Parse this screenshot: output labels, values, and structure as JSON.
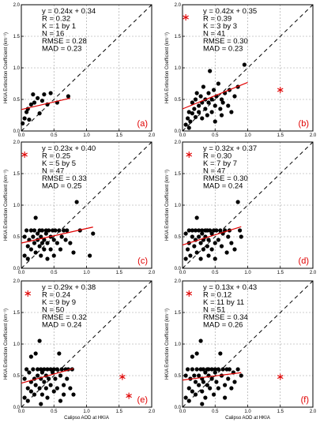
{
  "chart_data": [
    {
      "panel": "(a)",
      "type": "scatter",
      "xlabel": "",
      "ylabel": "HKIA Extinction Coefficient (km⁻¹)",
      "xlim": [
        0,
        2
      ],
      "ylim": [
        0,
        2
      ],
      "xticks": [
        "0.0",
        "0.5",
        "1.0",
        "1.5",
        "2.0"
      ],
      "yticks": [
        "0.0",
        "0.5",
        "1.0",
        "1.5",
        "2.0"
      ],
      "grid": true,
      "stats": [
        "y = 0.24x + 0.34",
        "R = 0.32",
        "K = 1 by 1",
        "N = 16",
        "RMSE = 0.28",
        "MAD = 0.23"
      ],
      "fit": {
        "slope": 0.24,
        "intercept": 0.34,
        "x_range": [
          0,
          0.75
        ]
      },
      "points": [
        [
          0.02,
          0.12
        ],
        [
          0.05,
          0.2
        ],
        [
          0.08,
          0.3
        ],
        [
          0.12,
          0.18
        ],
        [
          0.15,
          0.42
        ],
        [
          0.18,
          0.58
        ],
        [
          0.2,
          0.45
        ],
        [
          0.25,
          0.52
        ],
        [
          0.28,
          0.28
        ],
        [
          0.32,
          0.48
        ],
        [
          0.35,
          0.58
        ],
        [
          0.4,
          0.42
        ],
        [
          0.45,
          0.6
        ],
        [
          0.55,
          0.45
        ],
        [
          0.72,
          0.55
        ],
        [
          0.1,
          0.35
        ]
      ],
      "outliers": []
    },
    {
      "panel": "(b)",
      "type": "scatter",
      "xlabel": "",
      "ylabel": "HKIA Extinction Coefficient (km⁻¹)",
      "xlim": [
        0,
        2
      ],
      "ylim": [
        0,
        2
      ],
      "xticks": [
        "0.0",
        "0.5",
        "1.0",
        "1.5",
        "2.0"
      ],
      "yticks": [
        "0.0",
        "0.5",
        "1.0",
        "1.5",
        "2.0"
      ],
      "grid": true,
      "stats": [
        "y = 0.42x + 0.35",
        "R = 0.39",
        "K = 3 by 3",
        "N = 41",
        "RMSE = 0.30",
        "MAD = 0.23"
      ],
      "fit": {
        "slope": 0.42,
        "intercept": 0.35,
        "x_range": [
          0,
          1.0
        ]
      },
      "points": [
        [
          0.05,
          0.1
        ],
        [
          0.08,
          0.2
        ],
        [
          0.1,
          0.3
        ],
        [
          0.12,
          0.15
        ],
        [
          0.15,
          0.28
        ],
        [
          0.15,
          0.45
        ],
        [
          0.18,
          0.35
        ],
        [
          0.2,
          0.22
        ],
        [
          0.2,
          0.5
        ],
        [
          0.22,
          0.6
        ],
        [
          0.25,
          0.4
        ],
        [
          0.25,
          0.3
        ],
        [
          0.28,
          0.55
        ],
        [
          0.3,
          0.2
        ],
        [
          0.3,
          0.45
        ],
        [
          0.32,
          0.7
        ],
        [
          0.35,
          0.5
        ],
        [
          0.35,
          0.35
        ],
        [
          0.38,
          0.25
        ],
        [
          0.4,
          0.6
        ],
        [
          0.4,
          0.45
        ],
        [
          0.42,
          0.95
        ],
        [
          0.45,
          0.3
        ],
        [
          0.45,
          0.5
        ],
        [
          0.48,
          0.65
        ],
        [
          0.5,
          0.4
        ],
        [
          0.5,
          0.15
        ],
        [
          0.52,
          0.55
        ],
        [
          0.55,
          0.75
        ],
        [
          0.58,
          0.35
        ],
        [
          0.6,
          0.5
        ],
        [
          0.6,
          0.25
        ],
        [
          0.62,
          0.45
        ],
        [
          0.65,
          0.6
        ],
        [
          0.7,
          0.4
        ],
        [
          0.72,
          0.65
        ],
        [
          0.75,
          0.3
        ],
        [
          0.8,
          0.55
        ],
        [
          0.85,
          0.7
        ],
        [
          0.95,
          1.05
        ],
        [
          0.1,
          0.05
        ]
      ],
      "outliers": [
        [
          0.05,
          1.8
        ],
        [
          1.5,
          0.65
        ]
      ]
    },
    {
      "panel": "(c)",
      "type": "scatter",
      "xlabel": "",
      "ylabel": "HKIA Extinction Coefficient (km⁻¹)",
      "xlim": [
        0,
        2
      ],
      "ylim": [
        0,
        2
      ],
      "xticks": [
        "0.0",
        "0.5",
        "1.0",
        "1.5",
        "2.0"
      ],
      "yticks": [
        "0.0",
        "0.5",
        "1.0",
        "1.5",
        "2.0"
      ],
      "grid": true,
      "stats": [
        "y = 0.23x + 0.40",
        "R = 0.25",
        "K = 5 by 5",
        "N = 47",
        "RMSE = 0.33",
        "MAD = 0.25"
      ],
      "fit": {
        "slope": 0.23,
        "intercept": 0.4,
        "x_range": [
          0,
          1.1
        ]
      },
      "points": [
        [
          0.05,
          0.2
        ],
        [
          0.05,
          0.5
        ],
        [
          0.08,
          0.6
        ],
        [
          0.1,
          0.35
        ],
        [
          0.1,
          0.15
        ],
        [
          0.12,
          0.45
        ],
        [
          0.15,
          0.6
        ],
        [
          0.15,
          0.3
        ],
        [
          0.18,
          0.5
        ],
        [
          0.2,
          0.4
        ],
        [
          0.2,
          0.6
        ],
        [
          0.22,
          0.25
        ],
        [
          0.22,
          0.8
        ],
        [
          0.25,
          0.45
        ],
        [
          0.25,
          0.55
        ],
        [
          0.28,
          0.35
        ],
        [
          0.28,
          0.6
        ],
        [
          0.3,
          0.5
        ],
        [
          0.3,
          0.2
        ],
        [
          0.32,
          0.4
        ],
        [
          0.32,
          0.6
        ],
        [
          0.35,
          0.45
        ],
        [
          0.35,
          0.3
        ],
        [
          0.38,
          0.55
        ],
        [
          0.38,
          0.6
        ],
        [
          0.4,
          0.4
        ],
        [
          0.4,
          0.15
        ],
        [
          0.42,
          0.6
        ],
        [
          0.45,
          0.5
        ],
        [
          0.45,
          0.3
        ],
        [
          0.48,
          0.6
        ],
        [
          0.5,
          0.45
        ],
        [
          0.5,
          0.2
        ],
        [
          0.52,
          0.6
        ],
        [
          0.55,
          0.4
        ],
        [
          0.58,
          0.6
        ],
        [
          0.6,
          0.3
        ],
        [
          0.62,
          0.5
        ],
        [
          0.65,
          0.6
        ],
        [
          0.68,
          0.45
        ],
        [
          0.7,
          0.6
        ],
        [
          0.75,
          0.4
        ],
        [
          0.8,
          0.25
        ],
        [
          0.85,
          1.05
        ],
        [
          0.9,
          0.6
        ],
        [
          1.05,
          0.2
        ],
        [
          1.1,
          0.55
        ]
      ],
      "outliers": [
        [
          0.05,
          1.8
        ]
      ]
    },
    {
      "panel": "(d)",
      "type": "scatter",
      "xlabel": "",
      "ylabel": "HKIA Extinction Coefficient (km⁻¹)",
      "xlim": [
        0,
        2
      ],
      "ylim": [
        0,
        2
      ],
      "xticks": [
        "0.0",
        "0.5",
        "1.0",
        "1.5",
        "2.0"
      ],
      "yticks": [
        "0.0",
        "0.5",
        "1.0",
        "1.5",
        "2.0"
      ],
      "grid": true,
      "stats": [
        "y = 0.32x + 0.37",
        "R = 0.30",
        "K = 7 by 7",
        "N = 47",
        "RMSE = 0.30",
        "MAD = 0.24"
      ],
      "fit": {
        "slope": 0.32,
        "intercept": 0.37,
        "x_range": [
          0,
          0.9
        ]
      },
      "points": [
        [
          0.05,
          0.15
        ],
        [
          0.05,
          0.55
        ],
        [
          0.08,
          0.3
        ],
        [
          0.1,
          0.6
        ],
        [
          0.1,
          0.4
        ],
        [
          0.12,
          0.2
        ],
        [
          0.15,
          0.5
        ],
        [
          0.15,
          0.6
        ],
        [
          0.18,
          0.35
        ],
        [
          0.2,
          0.45
        ],
        [
          0.2,
          0.6
        ],
        [
          0.22,
          0.25
        ],
        [
          0.22,
          0.8
        ],
        [
          0.25,
          0.5
        ],
        [
          0.25,
          0.6
        ],
        [
          0.28,
          0.4
        ],
        [
          0.28,
          0.15
        ],
        [
          0.3,
          0.55
        ],
        [
          0.3,
          0.6
        ],
        [
          0.32,
          0.3
        ],
        [
          0.32,
          0.45
        ],
        [
          0.35,
          0.6
        ],
        [
          0.35,
          0.5
        ],
        [
          0.38,
          0.35
        ],
        [
          0.38,
          0.6
        ],
        [
          0.4,
          0.45
        ],
        [
          0.4,
          0.2
        ],
        [
          0.42,
          0.6
        ],
        [
          0.45,
          0.55
        ],
        [
          0.45,
          0.3
        ],
        [
          0.48,
          0.6
        ],
        [
          0.5,
          0.4
        ],
        [
          0.5,
          0.15
        ],
        [
          0.52,
          0.6
        ],
        [
          0.55,
          0.45
        ],
        [
          0.58,
          0.6
        ],
        [
          0.6,
          0.35
        ],
        [
          0.62,
          0.55
        ],
        [
          0.65,
          0.6
        ],
        [
          0.68,
          0.25
        ],
        [
          0.7,
          0.5
        ],
        [
          0.72,
          0.6
        ],
        [
          0.75,
          0.4
        ],
        [
          0.8,
          0.3
        ],
        [
          0.85,
          1.05
        ],
        [
          0.88,
          0.6
        ],
        [
          0.9,
          0.5
        ]
      ],
      "outliers": [
        [
          0.1,
          1.8
        ]
      ]
    },
    {
      "panel": "(e)",
      "type": "scatter",
      "xlabel": "Calipso AOD at HKIA",
      "ylabel": "HKIA Extinction Coefficient (km⁻¹)",
      "xlim": [
        0,
        2
      ],
      "ylim": [
        0,
        2
      ],
      "xticks": [
        "0.0",
        "0.5",
        "1.0",
        "1.5",
        "2.0"
      ],
      "yticks": [
        "0.0",
        "0.5",
        "1.0",
        "1.5",
        "2.0"
      ],
      "grid": true,
      "stats": [
        "y = 0.29x + 0.38",
        "R = 0.24",
        "K = 9 by 9",
        "N = 50",
        "RMSE = 0.32",
        "MAD = 0.24"
      ],
      "fit": {
        "slope": 0.29,
        "intercept": 0.38,
        "x_range": [
          0,
          0.8
        ]
      },
      "points": [
        [
          0.05,
          0.15
        ],
        [
          0.05,
          0.45
        ],
        [
          0.08,
          0.6
        ],
        [
          0.1,
          0.3
        ],
        [
          0.1,
          0.1
        ],
        [
          0.12,
          0.55
        ],
        [
          0.15,
          0.4
        ],
        [
          0.15,
          0.25
        ],
        [
          0.18,
          0.6
        ],
        [
          0.2,
          0.45
        ],
        [
          0.2,
          0.2
        ],
        [
          0.22,
          0.85
        ],
        [
          0.22,
          0.35
        ],
        [
          0.25,
          0.6
        ],
        [
          0.25,
          0.5
        ],
        [
          0.28,
          1.05
        ],
        [
          0.28,
          0.3
        ],
        [
          0.3,
          0.6
        ],
        [
          0.3,
          0.45
        ],
        [
          0.32,
          0.2
        ],
        [
          0.32,
          0.55
        ],
        [
          0.35,
          0.4
        ],
        [
          0.35,
          0.6
        ],
        [
          0.38,
          0.3
        ],
        [
          0.38,
          0.5
        ],
        [
          0.4,
          0.6
        ],
        [
          0.4,
          0.15
        ],
        [
          0.42,
          0.45
        ],
        [
          0.45,
          0.6
        ],
        [
          0.45,
          0.35
        ],
        [
          0.48,
          0.55
        ],
        [
          0.5,
          0.25
        ],
        [
          0.5,
          0.6
        ],
        [
          0.52,
          0.45
        ],
        [
          0.55,
          0.6
        ],
        [
          0.55,
          0.3
        ],
        [
          0.58,
          0.85
        ],
        [
          0.6,
          0.5
        ],
        [
          0.62,
          0.6
        ],
        [
          0.65,
          0.35
        ],
        [
          0.65,
          0.2
        ],
        [
          0.68,
          0.6
        ],
        [
          0.7,
          0.45
        ],
        [
          0.72,
          0.6
        ],
        [
          0.75,
          0.3
        ],
        [
          0.78,
          0.6
        ],
        [
          0.8,
          0.2
        ],
        [
          0.6,
          0.1
        ],
        [
          0.15,
          0.8
        ],
        [
          0.3,
          0.05
        ]
      ],
      "outliers": [
        [
          0.1,
          1.8
        ],
        [
          1.55,
          0.48
        ],
        [
          1.65,
          0.18
        ]
      ]
    },
    {
      "panel": "(f)",
      "type": "scatter",
      "xlabel": "Calipso AOD at HKIA",
      "ylabel": "HKIA Extinction Coefficient (km⁻¹)",
      "xlim": [
        0,
        2
      ],
      "ylim": [
        0,
        2
      ],
      "xticks": [
        "0.0",
        "0.5",
        "1.0",
        "1.5",
        "2.0"
      ],
      "yticks": [
        "0.0",
        "0.5",
        "1.0",
        "1.5",
        "2.0"
      ],
      "grid": true,
      "stats": [
        "y = 0.13x + 0.43",
        "R = 0.12",
        "K = 11 by 11",
        "N = 51",
        "RMSE = 0.34",
        "MAD = 0.26"
      ],
      "fit": {
        "slope": 0.13,
        "intercept": 0.43,
        "x_range": [
          0,
          0.9
        ]
      },
      "points": [
        [
          0.05,
          0.15
        ],
        [
          0.05,
          0.5
        ],
        [
          0.08,
          0.6
        ],
        [
          0.1,
          0.3
        ],
        [
          0.1,
          0.1
        ],
        [
          0.12,
          0.45
        ],
        [
          0.15,
          0.6
        ],
        [
          0.15,
          0.25
        ],
        [
          0.18,
          0.5
        ],
        [
          0.2,
          0.4
        ],
        [
          0.2,
          0.2
        ],
        [
          0.22,
          0.85
        ],
        [
          0.22,
          0.6
        ],
        [
          0.25,
          0.35
        ],
        [
          0.25,
          0.5
        ],
        [
          0.28,
          1.05
        ],
        [
          0.28,
          0.6
        ],
        [
          0.3,
          0.45
        ],
        [
          0.3,
          0.25
        ],
        [
          0.32,
          0.6
        ],
        [
          0.32,
          0.4
        ],
        [
          0.35,
          0.55
        ],
        [
          0.35,
          0.15
        ],
        [
          0.38,
          0.6
        ],
        [
          0.38,
          0.35
        ],
        [
          0.4,
          0.5
        ],
        [
          0.4,
          0.6
        ],
        [
          0.42,
          0.3
        ],
        [
          0.45,
          0.45
        ],
        [
          0.45,
          0.6
        ],
        [
          0.48,
          0.2
        ],
        [
          0.5,
          0.55
        ],
        [
          0.5,
          0.6
        ],
        [
          0.52,
          0.4
        ],
        [
          0.55,
          0.6
        ],
        [
          0.55,
          0.3
        ],
        [
          0.58,
          0.85
        ],
        [
          0.6,
          0.5
        ],
        [
          0.62,
          0.6
        ],
        [
          0.65,
          0.35
        ],
        [
          0.65,
          0.15
        ],
        [
          0.68,
          0.6
        ],
        [
          0.7,
          0.45
        ],
        [
          0.72,
          0.6
        ],
        [
          0.75,
          0.3
        ],
        [
          0.78,
          0.55
        ],
        [
          0.8,
          0.4
        ],
        [
          0.85,
          0.6
        ],
        [
          0.9,
          0.5
        ],
        [
          0.15,
          0.8
        ],
        [
          0.3,
          0.05
        ]
      ],
      "outliers": [
        [
          0.1,
          1.8
        ],
        [
          1.5,
          0.48
        ]
      ]
    }
  ]
}
